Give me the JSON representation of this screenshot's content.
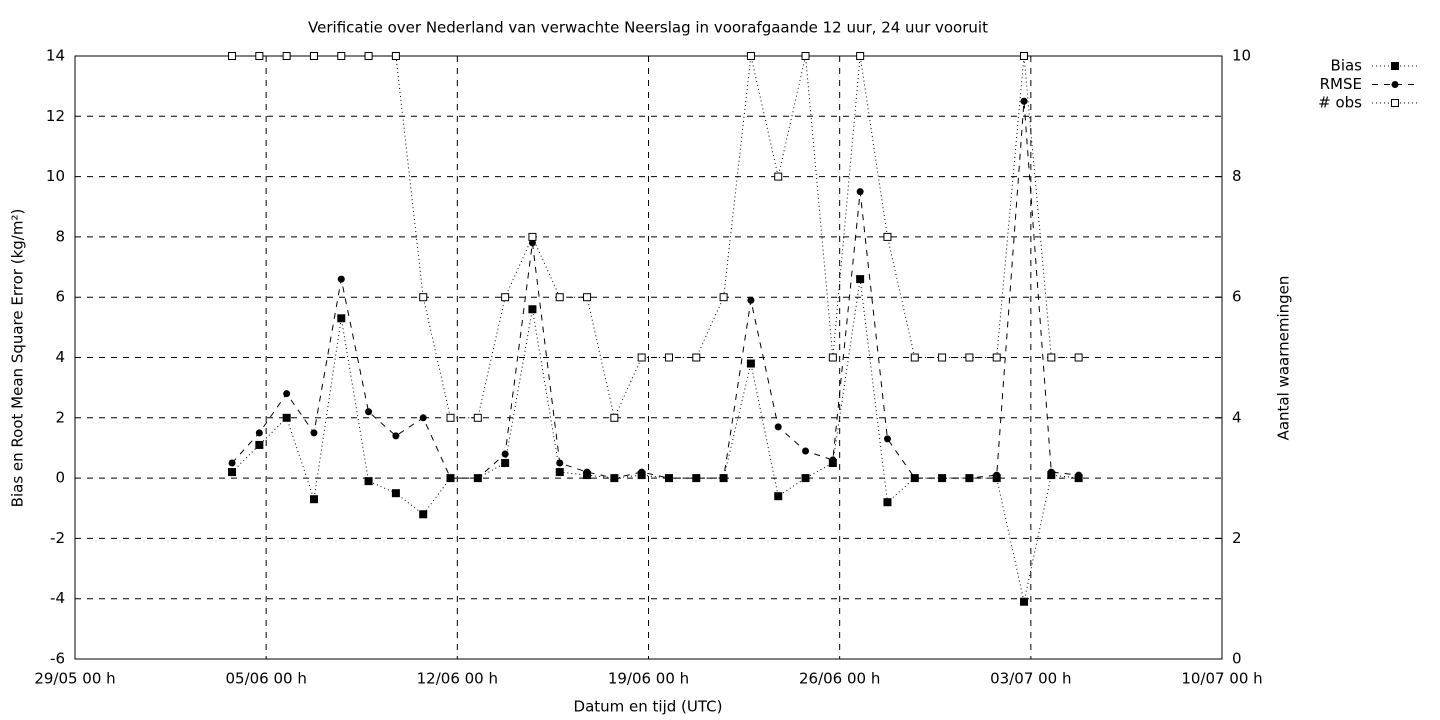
{
  "chart_data": {
    "type": "line",
    "title": "Verificatie over Nederland van verwachte Neerslag in voorafgaande 12 uur, 24 uur vooruit",
    "x_label": "Datum en tijd (UTC)",
    "y_label": "Bias en Root Mean Square Error (kg/m²)",
    "y2_label": "Aantal waarnemingen",
    "x": [
      "03/06 18 h",
      "04/06 18 h",
      "05/06 18 h",
      "06/06 18 h",
      "07/06 18 h",
      "08/06 18 h",
      "09/06 18 h",
      "10/06 18 h",
      "11/06 18 h",
      "12/06 18 h",
      "13/06 18 h",
      "14/06 18 h",
      "15/06 18 h",
      "16/06 18 h",
      "17/06 18 h",
      "18/06 18 h",
      "19/06 18 h",
      "20/06 18 h",
      "21/06 18 h",
      "22/06 18 h",
      "23/06 18 h",
      "24/06 18 h",
      "25/06 18 h",
      "26/06 18 h",
      "27/06 18 h",
      "28/06 18 h",
      "29/06 18 h",
      "30/06 18 h",
      "01/07 18 h",
      "02/07 18 h",
      "03/07 18 h",
      "04/07 18 h"
    ],
    "xlim": [
      "29/05 00 h",
      "10/07 00 h"
    ],
    "xticks": [
      "29/05 00 h",
      "05/06 00 h",
      "12/06 00 h",
      "19/06 00 h",
      "26/06 00 h",
      "03/07 00 h",
      "10/07 00 h"
    ],
    "ylim": [
      -6,
      14
    ],
    "yticks": [
      -6,
      -4,
      -2,
      0,
      2,
      4,
      6,
      8,
      10,
      12,
      14
    ],
    "y2lim": [
      0,
      10
    ],
    "y2ticks": [
      0,
      2,
      4,
      6,
      8,
      10
    ],
    "grid": true,
    "legend": "top-right-outside",
    "series": [
      {
        "name": "Bias",
        "color": "#000000",
        "dash": "dotted",
        "marker": "square",
        "values": [
          0.2,
          1.1,
          2.0,
          -0.7,
          5.3,
          -0.1,
          -0.5,
          -1.2,
          0,
          0,
          0.5,
          5.6,
          0.2,
          0.1,
          0,
          0.1,
          0,
          0,
          0,
          3.8,
          -0.6,
          0,
          0.5,
          6.6,
          -0.8,
          0,
          0,
          0,
          0,
          -4.1,
          0.1,
          0
        ]
      },
      {
        "name": "RMSE",
        "color": "#000000",
        "dash": "dashed",
        "marker": "circle",
        "values": [
          0.5,
          1.5,
          2.8,
          1.5,
          6.6,
          2.2,
          1.4,
          2.0,
          0,
          0,
          0.8,
          7.8,
          0.5,
          0.2,
          0,
          0.2,
          0,
          0,
          0,
          5.9,
          1.7,
          0.9,
          0.6,
          9.5,
          1.3,
          0,
          0,
          0,
          0.1,
          12.5,
          0.2,
          0.1
        ]
      },
      {
        "name": "# obs",
        "color": "#000000",
        "dash": "dotted",
        "marker": "open-square",
        "axis": "y2",
        "values": [
          10,
          10,
          10,
          10,
          10,
          10,
          10,
          6,
          4,
          4,
          6,
          7,
          6,
          6,
          4,
          5,
          5,
          5,
          6,
          10,
          8,
          10,
          5,
          10,
          7,
          5,
          5,
          5,
          5,
          10,
          5,
          5
        ]
      }
    ]
  }
}
